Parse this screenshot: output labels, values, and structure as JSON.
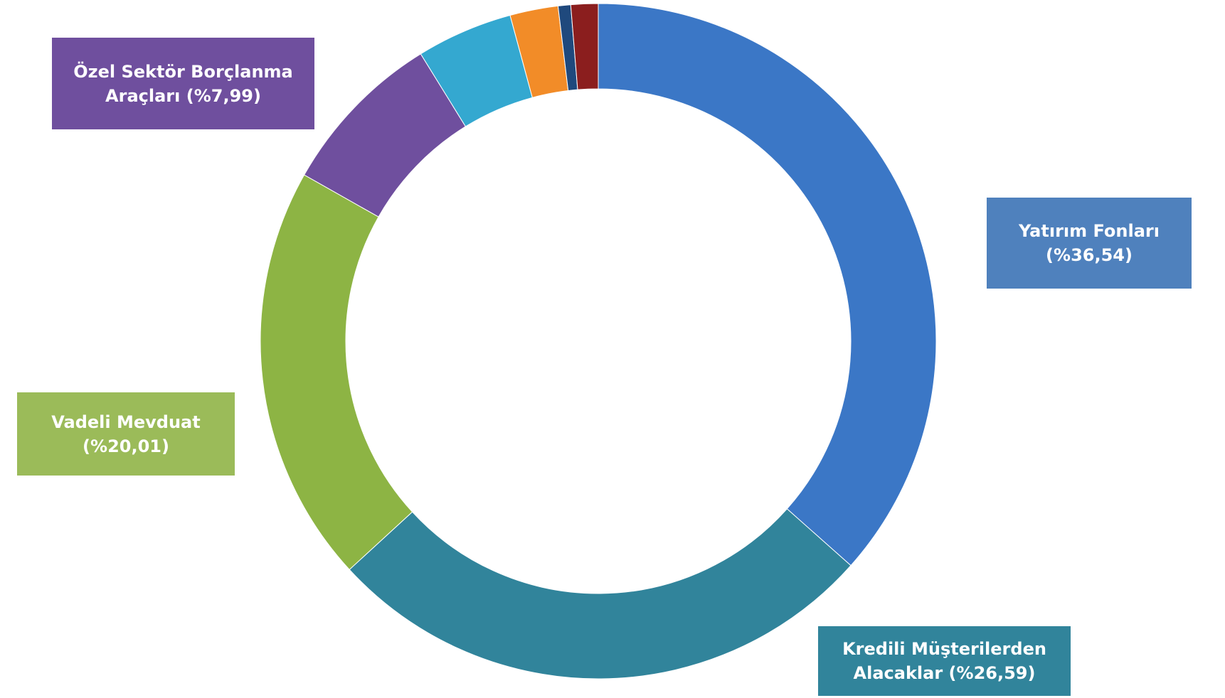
{
  "chart_data": {
    "type": "donut",
    "categories": [
      "Yatırım Fonları",
      "Kredili Müşterilerden Alacaklar",
      "Vadeli Mevduat",
      "Özel Sektör Borçlanma Araçları",
      null,
      null,
      null,
      null
    ],
    "values": [
      36.54,
      26.59,
      20.01,
      7.99,
      4.6,
      2.3,
      0.6,
      1.3
    ],
    "value_labels": [
      "(%36,54)",
      "(%26,59)",
      "(%20,01)",
      "(%7,99)",
      null,
      null,
      null,
      null
    ],
    "colors": [
      "#3b77c6",
      "#31849b",
      "#8db444",
      "#6f4f9e",
      "#34a8d0",
      "#f28c28",
      "#1f497d",
      "#8b1e1e"
    ],
    "label_colors": [
      "#4f81bd",
      "#31849b",
      "#9bbb59",
      "#6f4f9e",
      null,
      null,
      null,
      null
    ]
  }
}
